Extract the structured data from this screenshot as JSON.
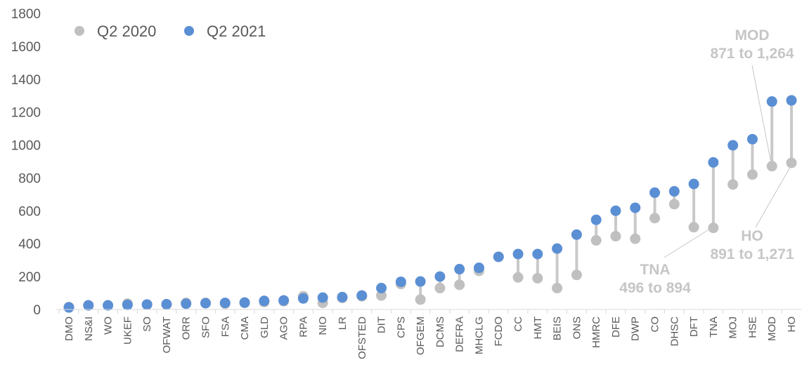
{
  "chart_data": {
    "type": "scatter",
    "title": "",
    "xlabel": "",
    "ylabel": "",
    "ylim": [
      0,
      1800
    ],
    "yticks": [
      "0",
      "200",
      "400",
      "600",
      "800",
      "1000",
      "1200",
      "1400",
      "1600",
      "1800"
    ],
    "grid": false,
    "legend_position": "top-left",
    "categories": [
      "DMO",
      "NS&I",
      "WO",
      "UKEF",
      "SO",
      "OFWAT",
      "ORR",
      "SFO",
      "FSA",
      "CMA",
      "GLD",
      "AGO",
      "RPA",
      "NIO",
      "LR",
      "OFSTED",
      "DIT",
      "CPS",
      "OFGEM",
      "DCMS",
      "DEFRA",
      "MHCLG",
      "FCDO",
      "CC",
      "HMT",
      "BEIS",
      "ONS",
      "HMRC",
      "DFE",
      "DWP",
      "CO",
      "DHSC",
      "DFT",
      "TNA",
      "MOJ",
      "HSE",
      "MOD",
      "HO"
    ],
    "series": [
      {
        "name": "Q2 2020",
        "color": "#c0c0c0",
        "values": [
          15,
          25,
          25,
          35,
          30,
          30,
          40,
          40,
          35,
          40,
          45,
          50,
          80,
          40,
          70,
          80,
          85,
          155,
          60,
          130,
          150,
          235,
          320,
          195,
          190,
          130,
          210,
          420,
          445,
          430,
          555,
          640,
          500,
          496,
          760,
          820,
          871,
          891
        ]
      },
      {
        "name": "Q2 2021",
        "color": "#5b8fd4",
        "values": [
          12,
          25,
          25,
          28,
          30,
          32,
          35,
          38,
          40,
          42,
          52,
          55,
          67,
          72,
          75,
          85,
          130,
          168,
          170,
          200,
          245,
          253,
          320,
          337,
          337,
          370,
          455,
          545,
          600,
          618,
          710,
          718,
          763,
          894,
          998,
          1035,
          1264,
          1271
        ]
      }
    ],
    "annotations": [
      {
        "label": "MOD",
        "text": "871 to 1,264"
      },
      {
        "label": "HO",
        "text": "891 to 1,271"
      },
      {
        "label": "TNA",
        "text": "496 to 894"
      }
    ]
  }
}
